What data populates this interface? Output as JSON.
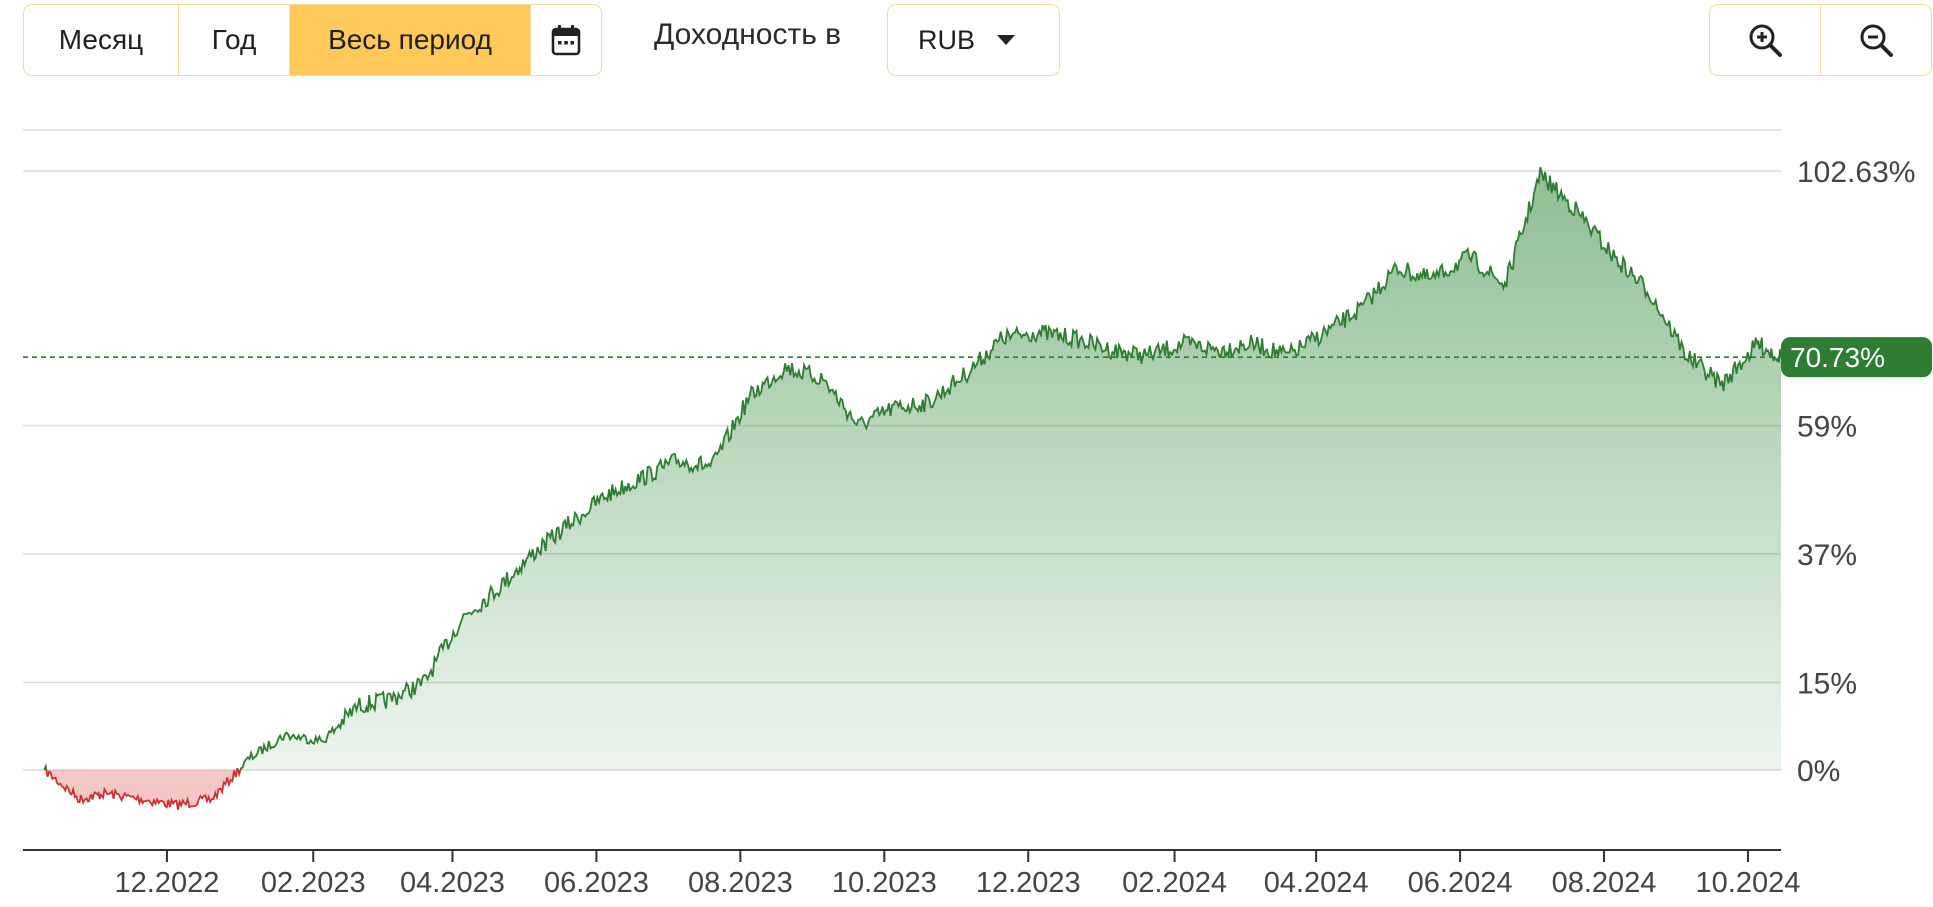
{
  "toolbar": {
    "period_tabs": [
      "Месяц",
      "Год",
      "Весь период"
    ],
    "active_tab": "Весь период",
    "return_label": "Доходность в",
    "currency": "RUB"
  },
  "colors": {
    "accent": "#ffc95a",
    "border": "#f1dc9a",
    "positive_line": "#2e7d32",
    "negative_line": "#d32f2f",
    "current_badge": "#2e7d32"
  },
  "chart_data": {
    "type": "area",
    "title": "",
    "xlabel": "",
    "ylabel": "",
    "y_unit": "%",
    "x_ticks": [
      "12.2022",
      "02.2023",
      "04.2023",
      "06.2023",
      "08.2023",
      "10.2023",
      "12.2023",
      "02.2024",
      "04.2024",
      "06.2024",
      "08.2024",
      "10.2024"
    ],
    "y_ticks": [
      "0%",
      "15%",
      "37%",
      "59%",
      "102.63%"
    ],
    "current_value_label": "70.73%",
    "current_value": 70.73,
    "max_value": 102.63,
    "grid": true,
    "series": [
      {
        "x": [
          "2022-10-10",
          "2022-10-25",
          "2022-11-05",
          "2022-11-20",
          "2022-12-05",
          "2022-12-20",
          "2023-01-05",
          "2023-01-20",
          "2023-02-05",
          "2023-02-20",
          "2023-03-05",
          "2023-03-20",
          "2023-04-05",
          "2023-04-20",
          "2023-05-05",
          "2023-05-20",
          "2023-06-05",
          "2023-06-20",
          "2023-07-05",
          "2023-07-20",
          "2023-08-05",
          "2023-08-20",
          "2023-09-05",
          "2023-09-20",
          "2023-10-05",
          "2023-10-20",
          "2023-11-05",
          "2023-11-20",
          "2023-12-05",
          "2023-12-20",
          "2024-01-05",
          "2024-01-20",
          "2024-02-05",
          "2024-02-20",
          "2024-03-05",
          "2024-03-20",
          "2024-04-05",
          "2024-04-20",
          "2024-05-05",
          "2024-05-20",
          "2024-06-05",
          "2024-06-20",
          "2024-07-05",
          "2024-07-20",
          "2024-08-05",
          "2024-08-20",
          "2024-09-05",
          "2024-09-20",
          "2024-10-05",
          "2024-10-15"
        ],
        "values": [
          0,
          -5,
          -4,
          -5,
          -6,
          -5,
          2,
          6,
          5,
          11,
          12,
          15,
          26,
          31,
          37,
          42,
          47,
          50,
          53,
          52,
          64,
          69,
          67,
          59,
          62,
          63,
          68,
          74,
          75,
          74,
          72,
          71,
          73,
          72,
          73,
          71,
          75,
          79,
          86,
          84,
          88,
          83,
          102,
          96,
          88,
          82,
          71,
          66,
          73,
          70.73
        ]
      }
    ]
  }
}
